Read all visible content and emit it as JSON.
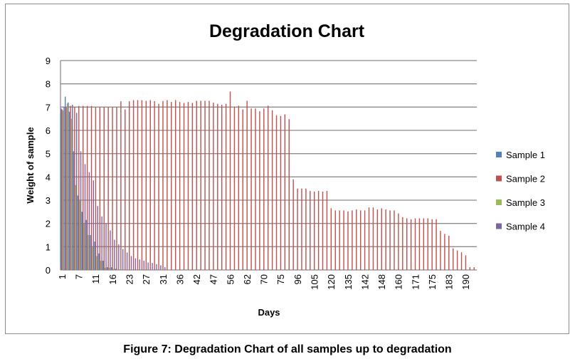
{
  "chart_data": {
    "type": "bar",
    "title": "Degradation Chart",
    "xlabel": "Days",
    "ylabel": "Weight of sample",
    "ylim": [
      0,
      9
    ],
    "yticks": [
      "0",
      "1",
      "2",
      "3",
      "4",
      "5",
      "6",
      "7",
      "8",
      "9"
    ],
    "grid": true,
    "legend_position": "right",
    "category_count": 99,
    "tick_labels": [
      "1",
      "7",
      "11",
      "16",
      "23",
      "27",
      "31",
      "36",
      "42",
      "47",
      "56",
      "62",
      "70",
      "75",
      "96",
      "105",
      "120",
      "135",
      "142",
      "148",
      "160",
      "171",
      "175",
      "183",
      "190"
    ],
    "tick_every": 4,
    "series": [
      {
        "name": "Sample 1",
        "color": "#4F81BD",
        "values": [
          6.95,
          7.45,
          6.8,
          5.1,
          3.2,
          2.5,
          2.15,
          1.5,
          1.22,
          0.71,
          0.4,
          0.12,
          0.12,
          0.05
        ]
      },
      {
        "name": "Sample 2",
        "color": "#C0504D",
        "values": [
          6.9,
          7.0,
          7.05,
          7.0,
          7.05,
          7.05,
          7.05,
          7.05,
          7.0,
          7.0,
          7.0,
          7.0,
          7.0,
          7.0,
          7.25,
          6.9,
          7.25,
          7.3,
          7.3,
          7.3,
          7.27,
          7.3,
          7.26,
          7.14,
          7.26,
          7.3,
          7.22,
          7.3,
          7.22,
          7.18,
          7.22,
          7.18,
          7.27,
          7.27,
          7.27,
          7.27,
          7.19,
          7.14,
          7.1,
          7.14,
          7.67,
          7.02,
          7.06,
          6.9,
          7.27,
          6.94,
          6.94,
          6.82,
          6.94,
          7.06,
          6.86,
          6.65,
          6.62,
          6.69,
          6.48,
          3.9,
          3.5,
          3.5,
          3.5,
          3.4,
          3.37,
          3.4,
          3.37,
          3.4,
          2.65,
          2.56,
          2.56,
          2.56,
          2.52,
          2.56,
          2.6,
          2.56,
          2.56,
          2.69,
          2.69,
          2.6,
          2.65,
          2.6,
          2.56,
          2.56,
          2.43,
          2.27,
          2.22,
          2.18,
          2.22,
          2.22,
          2.22,
          2.22,
          2.18,
          2.18,
          1.68,
          1.55,
          1.47,
          0.93,
          0.84,
          0.76,
          0.63,
          0.12,
          0.12
        ]
      },
      {
        "name": "Sample 3",
        "color": "#9BBB59",
        "values": [
          6.85,
          7.15,
          6.5,
          3.65,
          3.0,
          2.0,
          1.5,
          1.0,
          0.6,
          0.4,
          0.1,
          0.1,
          0.05
        ]
      },
      {
        "name": "Sample 4",
        "color": "#8064A2",
        "values": [
          7.0,
          7.2,
          7.1,
          6.75,
          5.1,
          4.55,
          4.2,
          3.85,
          2.75,
          2.3,
          2.0,
          1.7,
          1.3,
          1.1,
          0.9,
          0.75,
          0.6,
          0.5,
          0.45,
          0.4,
          0.32,
          0.3,
          0.25,
          0.2,
          0.12
        ]
      }
    ]
  },
  "caption": "Figure 7: Degradation Chart of all samples up to degradation"
}
